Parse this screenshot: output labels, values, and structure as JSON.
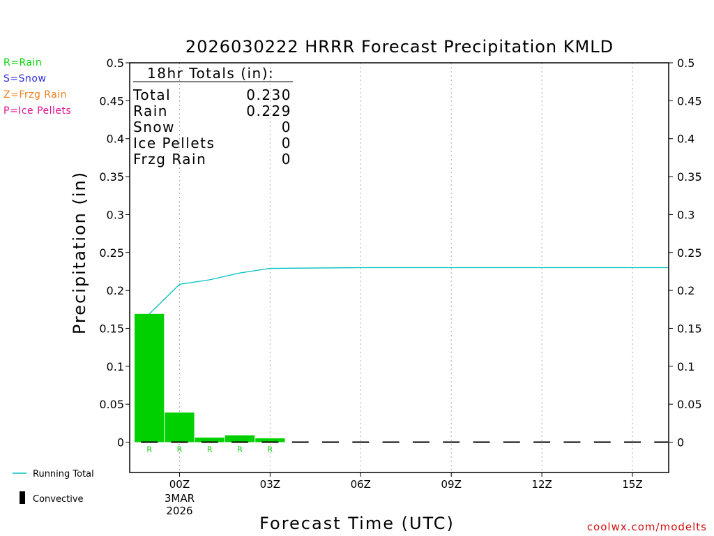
{
  "colors": {
    "rain": "#00d000",
    "snow": "#3030e0",
    "frzg_rain": "#f08020",
    "ice_pellets": "#e01090",
    "running_total": "#00c0c0",
    "convective": "#000000",
    "credit": "#d01010"
  },
  "type_legend": [
    {
      "label": "R=Rain",
      "color": "#00d000"
    },
    {
      "label": "S=Snow",
      "color": "#3030e0"
    },
    {
      "label": "Z=Frzg Rain",
      "color": "#f08020"
    },
    {
      "label": "P=Ice Pellets",
      "color": "#e01090"
    }
  ],
  "series_legend": {
    "running_total": "Running Total",
    "convective": "Convective"
  },
  "credit": "coolwx.com/modelts",
  "totals_box": {
    "heading": "18hr Totals (in):",
    "rows": [
      {
        "label": "Total",
        "value": "0.230"
      },
      {
        "label": "Rain",
        "value": "0.229"
      },
      {
        "label": "Snow",
        "value": "0"
      },
      {
        "label": "Ice Pellets",
        "value": "0"
      },
      {
        "label": "Frzg Rain",
        "value": "0"
      }
    ]
  },
  "chart_data": {
    "type": "bar",
    "title": "2026030222 HRRR Forecast Precipitation KMLD",
    "xlabel": "Forecast Time (UTC)",
    "ylabel": "Precipitation (in)",
    "ylim": [
      -0.04,
      0.5
    ],
    "xlim": [
      -1.65,
      16.2
    ],
    "yticks": [
      0,
      0.05,
      0.1,
      0.15,
      0.2,
      0.25,
      0.3,
      0.35,
      0.4,
      0.45,
      0.5
    ],
    "ytick_labels": [
      "0",
      "0.05",
      "0.1",
      "0.15",
      "0.2",
      "0.25",
      "0.3",
      "0.35",
      "0.4",
      "0.45",
      "0.5"
    ],
    "xticks": [
      {
        "hour": 0,
        "label": "00Z",
        "sub": [
          "3MAR",
          "2026"
        ]
      },
      {
        "hour": 3,
        "label": "03Z",
        "sub": []
      },
      {
        "hour": 6,
        "label": "06Z",
        "sub": []
      },
      {
        "hour": 9,
        "label": "09Z",
        "sub": []
      },
      {
        "hour": 12,
        "label": "12Z",
        "sub": []
      },
      {
        "hour": 15,
        "label": "15Z",
        "sub": []
      }
    ],
    "grid": true,
    "bars": [
      {
        "hour": -1,
        "value": 0.169,
        "type": "R"
      },
      {
        "hour": 0,
        "value": 0.039,
        "type": "R"
      },
      {
        "hour": 1,
        "value": 0.006,
        "type": "R"
      },
      {
        "hour": 2,
        "value": 0.009,
        "type": "R"
      },
      {
        "hour": 3,
        "value": 0.005,
        "type": "R"
      }
    ],
    "running_total": [
      {
        "hour": -1,
        "value": 0.169
      },
      {
        "hour": 0,
        "value": 0.208
      },
      {
        "hour": 1,
        "value": 0.214
      },
      {
        "hour": 2,
        "value": 0.223
      },
      {
        "hour": 3,
        "value": 0.229
      },
      {
        "hour": 6,
        "value": 0.23
      },
      {
        "hour": 16.2,
        "value": 0.23
      }
    ],
    "convective_hours": [
      -1,
      0,
      1,
      2,
      3,
      4,
      5,
      6,
      7,
      8,
      9,
      10,
      11,
      12,
      13,
      14,
      15,
      16
    ]
  }
}
